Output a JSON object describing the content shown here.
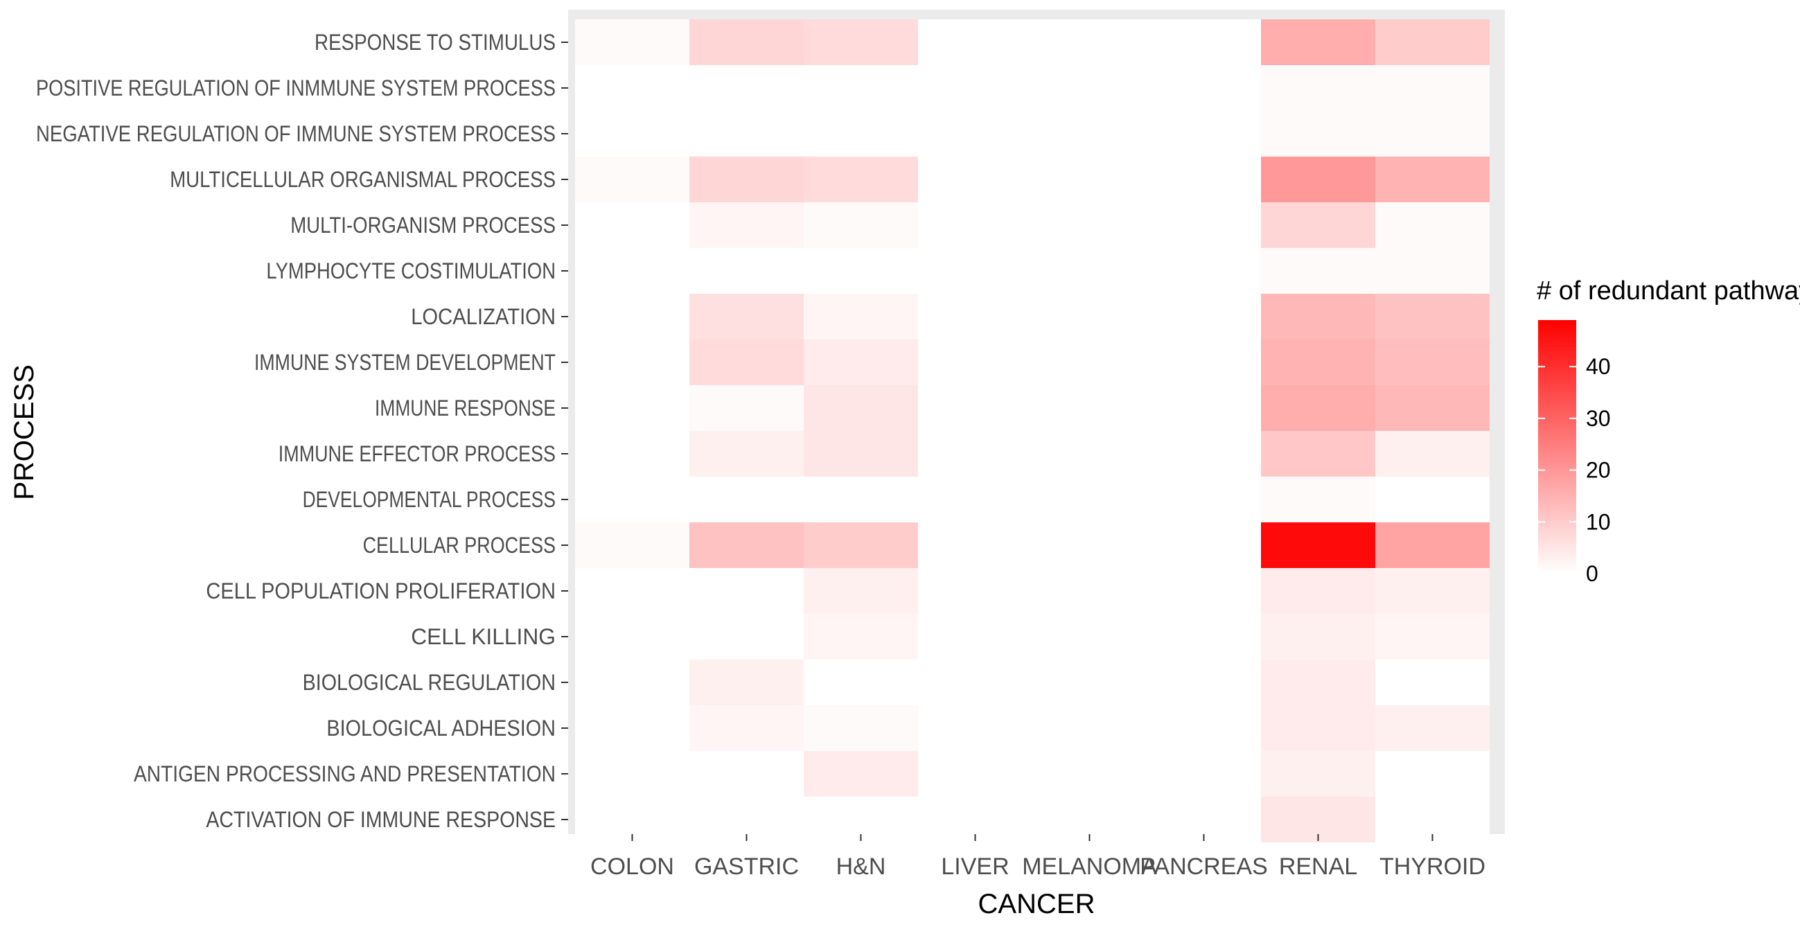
{
  "chart_data": {
    "type": "heatmap",
    "title": "",
    "xlabel": "CANCER",
    "ylabel": "PROCESS",
    "x_categories": [
      "COLON",
      "GASTRIC",
      "H&N",
      "LIVER",
      "MELANOMA",
      "PANCREAS",
      "RENAL",
      "THYROID"
    ],
    "y_categories": [
      "RESPONSE TO STIMULUS",
      "POSITIVE REGULATION OF INMMUNE SYSTEM PROCESS",
      "NEGATIVE REGULATION OF IMMUNE SYSTEM PROCESS",
      "MULTICELLULAR ORGANISMAL PROCESS",
      "MULTI-ORGANISM PROCESS",
      "LYMPHOCYTE COSTIMULATION",
      "LOCALIZATION",
      "IMMUNE SYSTEM DEVELOPMENT",
      "IMMUNE RESPONSE",
      "IMMUNE EFFECTOR PROCESS",
      "DEVELOPMENTAL PROCESS",
      "CELLULAR PROCESS",
      "CELL POPULATION PROLIFERATION",
      "CELL KILLING",
      "BIOLOGICAL REGULATION",
      "BIOLOGICAL ADHESION",
      "ANTIGEN PROCESSING AND PRESENTATION",
      "ACTIVATION OF IMMUNE RESPONSE"
    ],
    "values": [
      [
        1,
        8,
        7,
        null,
        null,
        null,
        16,
        10
      ],
      [
        null,
        null,
        null,
        null,
        null,
        null,
        1,
        1
      ],
      [
        null,
        null,
        null,
        null,
        null,
        null,
        1,
        1
      ],
      [
        1,
        8,
        7,
        null,
        null,
        null,
        20,
        15
      ],
      [
        null,
        2,
        1,
        null,
        null,
        null,
        8,
        1
      ],
      [
        null,
        null,
        null,
        null,
        null,
        null,
        1,
        1
      ],
      [
        null,
        6,
        2,
        null,
        null,
        null,
        14,
        12
      ],
      [
        null,
        7,
        4,
        null,
        null,
        null,
        15,
        13
      ],
      [
        null,
        1,
        5,
        null,
        null,
        null,
        16,
        14
      ],
      [
        null,
        3,
        5,
        null,
        null,
        null,
        11,
        3
      ],
      [
        null,
        null,
        null,
        null,
        null,
        null,
        1,
        null
      ],
      [
        1,
        12,
        10,
        null,
        null,
        null,
        48,
        18
      ],
      [
        null,
        null,
        3,
        null,
        null,
        null,
        4,
        3
      ],
      [
        null,
        null,
        2,
        null,
        null,
        null,
        3,
        2
      ],
      [
        null,
        3,
        null,
        null,
        null,
        null,
        4,
        null
      ],
      [
        null,
        2,
        1,
        null,
        null,
        null,
        4,
        3
      ],
      [
        null,
        null,
        4,
        null,
        null,
        null,
        3,
        null
      ],
      [
        null,
        null,
        null,
        null,
        null,
        null,
        5,
        null
      ]
    ],
    "color_scale": {
      "low": "#ffffff",
      "high": "#ff0000",
      "min": 0,
      "max": 50
    },
    "legend": {
      "title": "# of redundant pathways",
      "ticks": [
        0,
        10,
        20,
        30,
        40
      ],
      "position": "right"
    },
    "panel_background": "#ebebeb",
    "grid": true
  }
}
